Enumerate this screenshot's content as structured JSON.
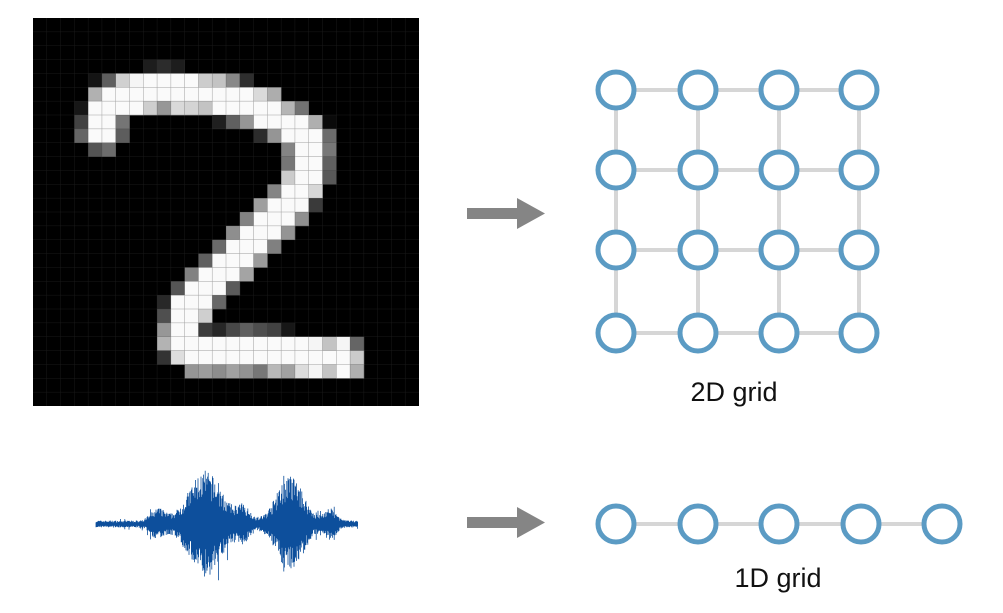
{
  "diagram": {
    "top_row": {
      "source": {
        "kind": "pixel-image",
        "icon": "handwritten-digit-2-image",
        "grid_size": 28
      },
      "arrow_icon": "right-arrow-icon",
      "target": {
        "caption": "2D grid",
        "rows": 4,
        "cols": 4
      }
    },
    "bottom_row": {
      "source": {
        "kind": "audio-waveform",
        "icon": "audio-waveform-icon"
      },
      "arrow_icon": "right-arrow-icon",
      "target": {
        "caption": "1D grid",
        "count": 5
      }
    },
    "colors": {
      "node_stroke": "#5b9bc4",
      "edge": "#d6d6d6",
      "arrow": "#858585",
      "waveform": "#0d4f9c",
      "image_bg": "#000000"
    }
  }
}
